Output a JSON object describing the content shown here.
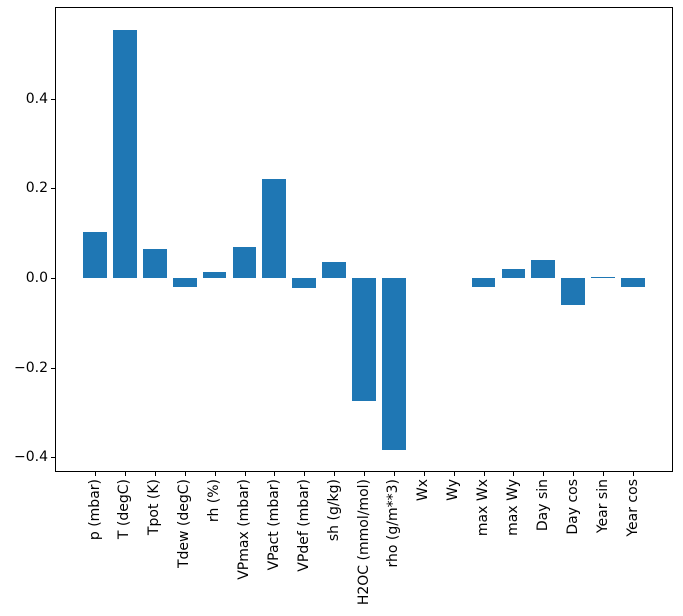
{
  "chart_data": {
    "type": "bar",
    "title": "",
    "xlabel": "",
    "ylabel": "",
    "categories": [
      "p (mbar)",
      "T (degC)",
      "Tpot (K)",
      "Tdew (degC)",
      "rh (%)",
      "VPmax (mbar)",
      "VPact (mbar)",
      "VPdef (mbar)",
      "sh (g/kg)",
      "H2OC (mmol/mol)",
      "rho (g/m**3)",
      "Wx",
      "Wy",
      "max Wx",
      "max Wy",
      "Day sin",
      "Day cos",
      "Year sin",
      "Year cos"
    ],
    "values": [
      0.102,
      0.554,
      0.065,
      -0.019,
      0.014,
      0.069,
      0.221,
      -0.023,
      0.036,
      -0.275,
      -0.384,
      0.0,
      0.0,
      -0.019,
      0.021,
      0.04,
      -0.06,
      0.002,
      -0.02
    ],
    "bar_color": "#1f77b4",
    "bar_width": 0.8,
    "yticks": [
      0.4,
      0.2,
      0.0,
      -0.2,
      -0.4
    ],
    "ytick_labels": [
      "0.4",
      "0.2",
      "0.0",
      "−0.2",
      "−0.4"
    ],
    "ylim": [
      -0.433,
      0.605
    ],
    "xlim": [
      -1.34,
      19.34
    ],
    "grid": false,
    "legend": false
  }
}
